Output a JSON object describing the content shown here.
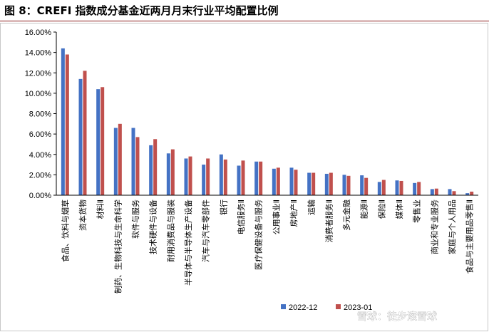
{
  "header": {
    "title": "图 8：CREFI 指数成分基金近两月月末行业平均配置比例"
  },
  "watermark": {
    "text": "雪球：徒步滚雪球"
  },
  "colors": {
    "series_2022_12": "#4472c4",
    "series_2023_01": "#c0504d",
    "title_rule": "#8c1c1c"
  },
  "chart_data": {
    "type": "bar",
    "title": "",
    "xlabel": "",
    "ylabel": "",
    "ylim": [
      0,
      16
    ],
    "y_ticks": [
      "0.00%",
      "2.00%",
      "4.00%",
      "6.00%",
      "8.00%",
      "10.00%",
      "12.00%",
      "14.00%",
      "16.00%"
    ],
    "grid": false,
    "legend_position": "bottom-right",
    "categories": [
      "食品、饮料与烟草",
      "资本货物",
      "材料Ⅱ",
      "制药、生物科技与生命科学",
      "软件与服务",
      "技术硬件与设备",
      "耐用消费品与服装",
      "半导体与半导体生产设备",
      "汽车与汽车零部件",
      "银行",
      "电信服务Ⅱ",
      "医疗保健设备与服务",
      "公用事业Ⅱ",
      "房地产Ⅱ",
      "运输",
      "消费者服务Ⅱ",
      "多元金融",
      "能源Ⅱ",
      "保险Ⅱ",
      "媒体Ⅱ",
      "零售业",
      "商业和专业服务",
      "家庭与个人用品",
      "食品与主要用品零售Ⅱ"
    ],
    "series": [
      {
        "name": "2022-12",
        "values": [
          14.4,
          11.4,
          10.4,
          6.6,
          6.6,
          4.9,
          4.1,
          3.6,
          3.0,
          4.0,
          2.9,
          3.3,
          2.6,
          2.7,
          2.2,
          2.1,
          2.0,
          1.95,
          1.3,
          1.45,
          1.2,
          0.6,
          0.6,
          0.2
        ]
      },
      {
        "name": "2023-01",
        "values": [
          13.8,
          12.2,
          10.6,
          7.0,
          5.7,
          5.5,
          4.5,
          3.8,
          3.6,
          3.5,
          3.4,
          3.3,
          2.7,
          2.5,
          2.2,
          2.2,
          1.9,
          1.7,
          1.5,
          1.4,
          1.3,
          0.65,
          0.4,
          0.35
        ]
      }
    ]
  }
}
